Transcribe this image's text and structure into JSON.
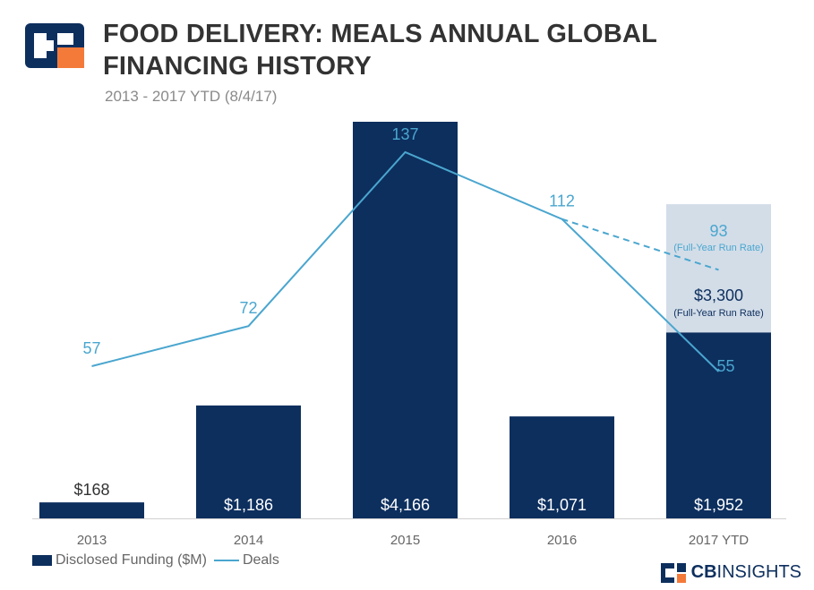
{
  "header": {
    "title": "FOOD DELIVERY: MEALS ANNUAL GLOBAL FINANCING HISTORY",
    "subtitle": "2013 - 2017 YTD (8/4/17)"
  },
  "legend": {
    "bars_label": "Disclosed Funding ($M)",
    "line_label": "Deals"
  },
  "brand": {
    "bold": "CB",
    "light": "INSIGHTS"
  },
  "colors": {
    "bar": "#0d2f5e",
    "line": "#4aa6cf",
    "runrate_bar": "#d3dde8",
    "text": "#333333"
  },
  "chart_data": {
    "type": "bar",
    "categories": [
      "2013",
      "2014",
      "2015",
      "2016",
      "2017 YTD"
    ],
    "series": [
      {
        "name": "Disclosed Funding ($M)",
        "values": [
          168,
          1186,
          4166,
          1071,
          1952
        ],
        "labels": [
          "$168",
          "$1,186",
          "$4,166",
          "$1,071",
          "$1,952"
        ]
      },
      {
        "name": "Deals",
        "type": "line",
        "values": [
          57,
          72,
          137,
          112,
          55
        ],
        "labels": [
          "57",
          "72",
          "137",
          "112",
          "55"
        ]
      }
    ],
    "run_rate": {
      "funding": 3300,
      "funding_label": "$3,300",
      "funding_note": "(Full-Year Run Rate)",
      "deals": 93,
      "deals_label": "93",
      "deals_note": "(Full-Year Run Rate)"
    }
  }
}
